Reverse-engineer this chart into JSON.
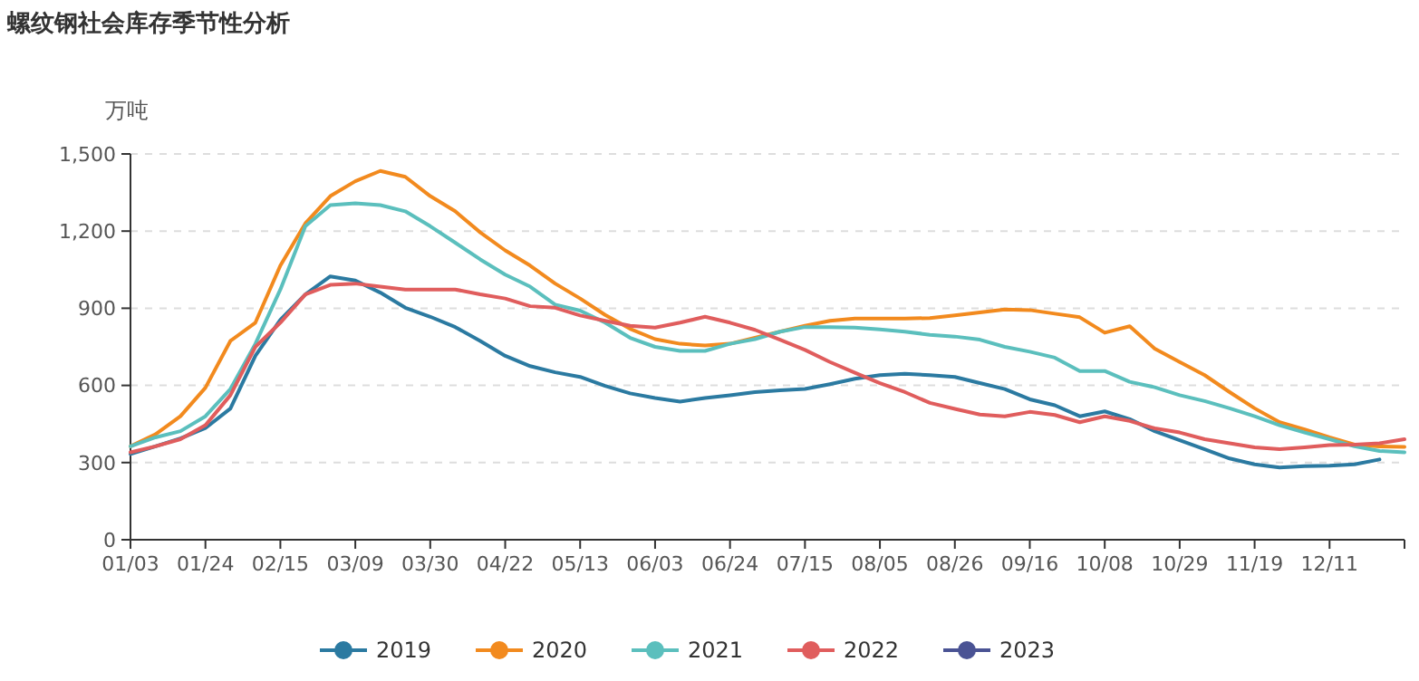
{
  "chart_data": {
    "type": "line",
    "title": "螺纹钢社会库存季节性分析",
    "ylabel": "万吨",
    "categories": [
      "01/03",
      null,
      null,
      "01/24",
      null,
      null,
      "02/15",
      null,
      null,
      "03/09",
      null,
      null,
      "03/30",
      null,
      null,
      "04/22",
      null,
      null,
      "05/13",
      null,
      null,
      "06/03",
      null,
      null,
      "06/24",
      null,
      null,
      "07/15",
      null,
      null,
      "08/05",
      null,
      null,
      "08/26",
      null,
      null,
      "09/16",
      null,
      null,
      "10/08",
      null,
      null,
      "10/29",
      null,
      null,
      "11/19",
      null,
      null,
      "12/11",
      null,
      null,
      null
    ],
    "ylim": [
      0,
      1500
    ],
    "yticks": [
      0,
      300,
      600,
      900,
      {
        "value": 1200,
        "label": "1,200"
      },
      {
        "value": 1500,
        "label": "1,500"
      }
    ],
    "grid": "y",
    "legend": "bottom",
    "marker": "none",
    "line_style": "solid",
    "series": [
      {
        "name": "2019",
        "color": "#2b7aa1",
        "values": [
          333,
          363,
          394,
          434,
          510,
          715,
          855,
          954,
          1024,
          1008,
          961,
          902,
          867,
          827,
          773,
          715,
          675,
          651,
          633,
          598,
          569,
          551,
          537,
          551,
          562,
          574,
          581,
          586,
          605,
          626,
          640,
          645,
          640,
          633,
          609,
          586,
          546,
          523,
          480,
          499,
          469,
          422,
          387,
          352,
          316,
          293,
          281,
          286,
          288,
          293,
          312,
          null
        ]
      },
      {
        "name": "2020",
        "color": "#f28a1e",
        "values": [
          363,
          410,
          480,
          591,
          773,
          844,
          1066,
          1230,
          1336,
          1394,
          1434,
          1411,
          1336,
          1277,
          1195,
          1125,
          1066,
          996,
          938,
          874,
          820,
          780,
          762,
          755,
          762,
          785,
          809,
          832,
          851,
          860,
          860,
          860,
          862,
          872,
          884,
          895,
          893,
          879,
          865,
          805,
          830,
          743,
          691,
          640,
          574,
          511,
          457,
          429,
          398,
          370,
          363,
          361
        ]
      },
      {
        "name": "2021",
        "color": "#5bbfbd",
        "values": [
          363,
          398,
          422,
          480,
          586,
          762,
          973,
          1219,
          1301,
          1308,
          1301,
          1277,
          1219,
          1155,
          1090,
          1031,
          984,
          914,
          891,
          844,
          785,
          750,
          734,
          734,
          762,
          780,
          809,
          827,
          827,
          825,
          818,
          809,
          797,
          790,
          778,
          750,
          731,
          708,
          656,
          656,
          614,
          593,
          562,
          539,
          511,
          480,
          445,
          417,
          391,
          363,
          345,
          340
        ]
      },
      {
        "name": "2022",
        "color": "#e05d5d",
        "values": [
          340,
          363,
          391,
          445,
          562,
          750,
          844,
          954,
          991,
          996,
          984,
          973,
          973,
          973,
          954,
          938,
          908,
          902,
          872,
          851,
          832,
          825,
          844,
          867,
          844,
          816,
          778,
          738,
          691,
          649,
          609,
          574,
          532,
          509,
          487,
          480,
          497,
          485,
          457,
          480,
          462,
          433,
          417,
          391,
          375,
          359,
          352,
          359,
          368,
          370,
          375,
          391
        ]
      },
      {
        "name": "2023",
        "color": "#4a5394",
        "values": [
          null,
          null,
          null,
          null,
          null,
          null,
          null,
          null,
          null,
          null,
          null,
          null,
          null,
          null,
          null,
          null,
          null,
          null,
          null,
          null,
          null,
          null,
          null,
          null,
          null,
          null,
          null,
          null,
          null,
          null,
          null,
          null,
          null,
          null,
          null,
          null,
          null,
          null,
          null,
          null,
          null,
          null,
          null,
          null,
          null,
          null,
          null,
          null,
          null,
          null,
          null,
          null
        ]
      }
    ]
  }
}
